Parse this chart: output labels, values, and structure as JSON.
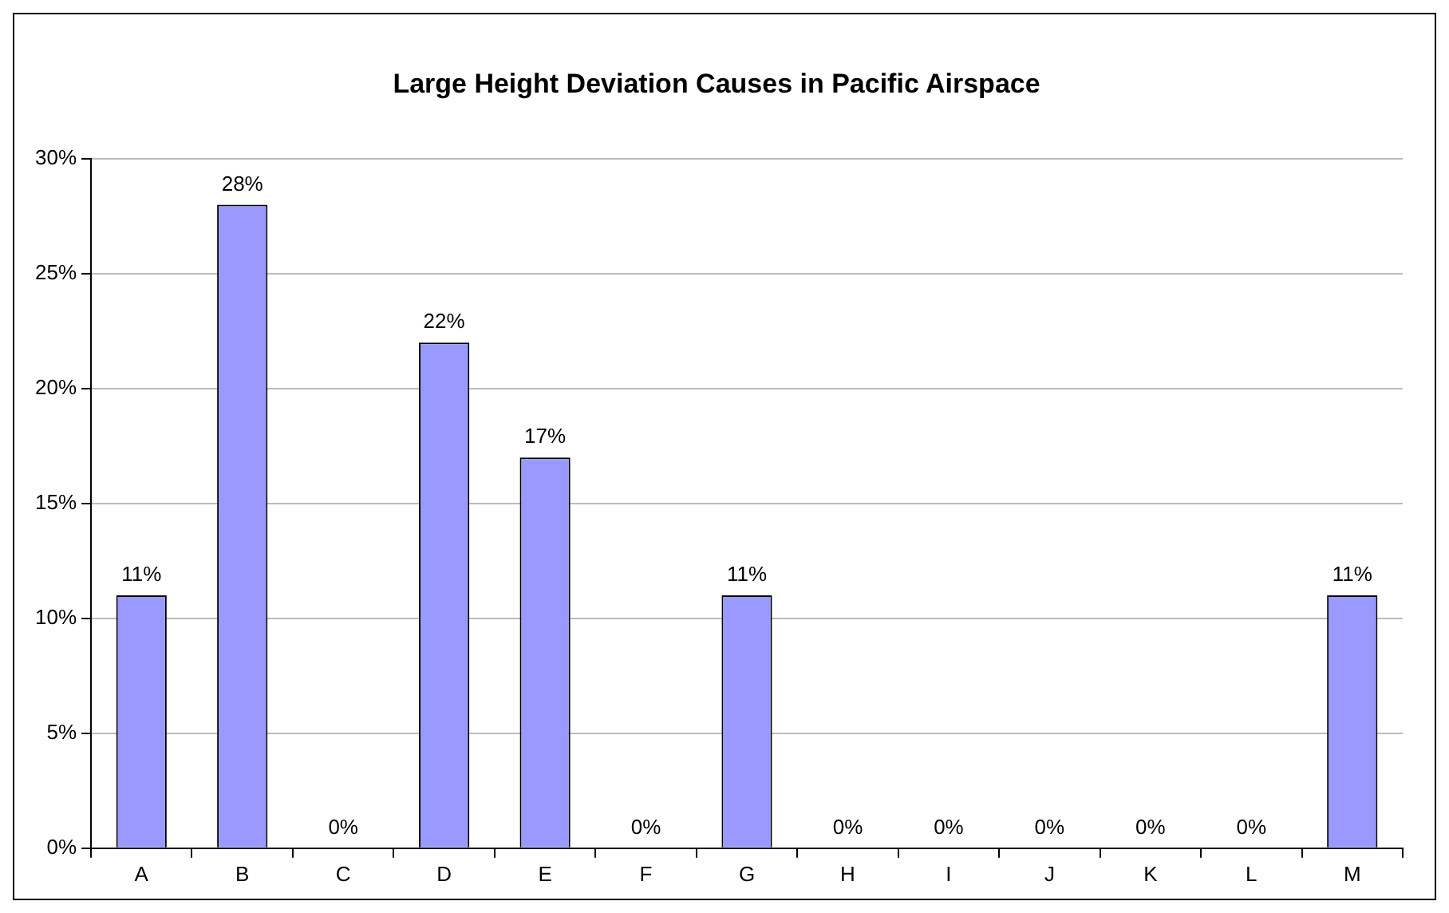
{
  "chart_data": {
    "type": "bar",
    "title": "Large Height Deviation Causes in Pacific Airspace",
    "categories": [
      "A",
      "B",
      "C",
      "D",
      "E",
      "F",
      "G",
      "H",
      "I",
      "J",
      "K",
      "L",
      "M"
    ],
    "values": [
      11,
      28,
      0,
      22,
      17,
      0,
      11,
      0,
      0,
      0,
      0,
      0,
      11
    ],
    "value_labels": [
      "11%",
      "28%",
      "0%",
      "22%",
      "17%",
      "0%",
      "11%",
      "0%",
      "0%",
      "0%",
      "0%",
      "0%",
      "11%"
    ],
    "color": "#9999ff",
    "ylim": [
      0,
      30
    ],
    "yticks": [
      {
        "value": 0,
        "label": "0%"
      },
      {
        "value": 5,
        "label": "5%"
      },
      {
        "value": 10,
        "label": "10%"
      },
      {
        "value": 15,
        "label": "15%"
      },
      {
        "value": 20,
        "label": "20%"
      },
      {
        "value": 25,
        "label": "25%"
      },
      {
        "value": 30,
        "label": "30%"
      }
    ],
    "grid": "y",
    "legend": false
  }
}
